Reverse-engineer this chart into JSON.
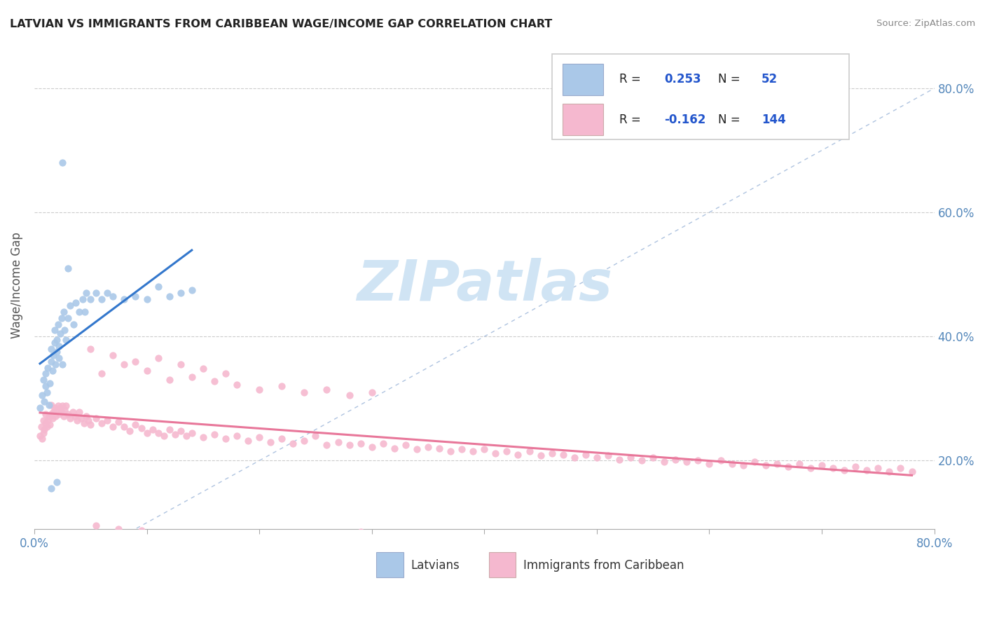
{
  "title": "LATVIAN VS IMMIGRANTS FROM CARIBBEAN WAGE/INCOME GAP CORRELATION CHART",
  "source": "Source: ZipAtlas.com",
  "ylabel": "Wage/Income Gap",
  "xlim": [
    0.0,
    0.8
  ],
  "ylim": [
    0.09,
    0.875
  ],
  "yticks": [
    0.2,
    0.4,
    0.6,
    0.8
  ],
  "ytick_labels": [
    "20.0%",
    "40.0%",
    "60.0%",
    "80.0%"
  ],
  "xtick_left_label": "0.0%",
  "xtick_right_label": "80.0%",
  "color_latvian_fill": "#aac8e8",
  "color_caribbean_fill": "#f5b8cf",
  "color_latvian_line": "#3377cc",
  "color_caribbean_line": "#e8779a",
  "color_diag": "#9ab4d8",
  "color_tick_label": "#5588bb",
  "watermark_text": "ZIPatlas",
  "watermark_color": "#d0e4f4",
  "legend_r1_label": "R = ",
  "legend_r1_val": "0.253",
  "legend_n1_label": "N = ",
  "legend_n1_val": "52",
  "legend_r2_label": "R = ",
  "legend_r2_val": "-0.162",
  "legend_n2_label": "N = ",
  "legend_n2_val": "144",
  "legend_color": "#2255cc",
  "bottom_legend_latvians": "Latvians",
  "bottom_legend_caribbean": "Immigrants from Caribbean",
  "lat_x": [
    0.005,
    0.007,
    0.008,
    0.009,
    0.01,
    0.01,
    0.011,
    0.012,
    0.013,
    0.014,
    0.015,
    0.015,
    0.016,
    0.017,
    0.018,
    0.018,
    0.019,
    0.02,
    0.02,
    0.021,
    0.022,
    0.022,
    0.023,
    0.024,
    0.025,
    0.026,
    0.027,
    0.028,
    0.03,
    0.032,
    0.035,
    0.037,
    0.04,
    0.043,
    0.046,
    0.05,
    0.055,
    0.06,
    0.065,
    0.07,
    0.08,
    0.09,
    0.1,
    0.11,
    0.12,
    0.13,
    0.14,
    0.025,
    0.03,
    0.045,
    0.015,
    0.02
  ],
  "lat_y": [
    0.285,
    0.305,
    0.33,
    0.295,
    0.32,
    0.34,
    0.31,
    0.35,
    0.29,
    0.325,
    0.36,
    0.38,
    0.345,
    0.37,
    0.39,
    0.41,
    0.355,
    0.375,
    0.395,
    0.42,
    0.365,
    0.385,
    0.405,
    0.43,
    0.355,
    0.44,
    0.41,
    0.395,
    0.43,
    0.45,
    0.42,
    0.455,
    0.44,
    0.46,
    0.47,
    0.46,
    0.47,
    0.46,
    0.47,
    0.465,
    0.46,
    0.465,
    0.46,
    0.48,
    0.465,
    0.47,
    0.475,
    0.68,
    0.51,
    0.44,
    0.155,
    0.165
  ],
  "car_x": [
    0.005,
    0.006,
    0.007,
    0.008,
    0.008,
    0.009,
    0.01,
    0.01,
    0.011,
    0.012,
    0.013,
    0.014,
    0.015,
    0.015,
    0.016,
    0.017,
    0.018,
    0.019,
    0.02,
    0.021,
    0.022,
    0.023,
    0.024,
    0.025,
    0.026,
    0.027,
    0.028,
    0.03,
    0.032,
    0.034,
    0.036,
    0.038,
    0.04,
    0.042,
    0.044,
    0.046,
    0.048,
    0.05,
    0.055,
    0.06,
    0.065,
    0.07,
    0.075,
    0.08,
    0.085,
    0.09,
    0.095,
    0.1,
    0.105,
    0.11,
    0.115,
    0.12,
    0.125,
    0.13,
    0.135,
    0.14,
    0.15,
    0.16,
    0.17,
    0.18,
    0.19,
    0.2,
    0.21,
    0.22,
    0.23,
    0.24,
    0.25,
    0.26,
    0.27,
    0.28,
    0.29,
    0.3,
    0.31,
    0.32,
    0.33,
    0.34,
    0.35,
    0.36,
    0.37,
    0.38,
    0.39,
    0.4,
    0.41,
    0.42,
    0.43,
    0.44,
    0.45,
    0.46,
    0.47,
    0.48,
    0.49,
    0.5,
    0.51,
    0.52,
    0.53,
    0.54,
    0.55,
    0.56,
    0.57,
    0.58,
    0.59,
    0.6,
    0.61,
    0.62,
    0.63,
    0.64,
    0.65,
    0.66,
    0.67,
    0.68,
    0.69,
    0.7,
    0.71,
    0.72,
    0.73,
    0.74,
    0.75,
    0.76,
    0.77,
    0.78,
    0.06,
    0.08,
    0.1,
    0.12,
    0.14,
    0.16,
    0.18,
    0.2,
    0.22,
    0.24,
    0.26,
    0.28,
    0.3,
    0.05,
    0.07,
    0.09,
    0.11,
    0.13,
    0.15,
    0.17,
    0.055,
    0.075,
    0.095,
    0.29
  ],
  "car_y": [
    0.24,
    0.255,
    0.235,
    0.245,
    0.265,
    0.25,
    0.26,
    0.275,
    0.255,
    0.265,
    0.27,
    0.258,
    0.275,
    0.29,
    0.268,
    0.278,
    0.285,
    0.272,
    0.282,
    0.288,
    0.275,
    0.285,
    0.278,
    0.288,
    0.272,
    0.282,
    0.288,
    0.275,
    0.268,
    0.278,
    0.272,
    0.265,
    0.278,
    0.268,
    0.26,
    0.272,
    0.265,
    0.258,
    0.268,
    0.26,
    0.265,
    0.255,
    0.262,
    0.255,
    0.248,
    0.258,
    0.252,
    0.245,
    0.25,
    0.245,
    0.24,
    0.25,
    0.242,
    0.248,
    0.24,
    0.245,
    0.238,
    0.242,
    0.235,
    0.24,
    0.232,
    0.238,
    0.23,
    0.235,
    0.228,
    0.232,
    0.24,
    0.225,
    0.23,
    0.225,
    0.228,
    0.222,
    0.228,
    0.22,
    0.225,
    0.218,
    0.222,
    0.22,
    0.215,
    0.218,
    0.215,
    0.218,
    0.212,
    0.215,
    0.21,
    0.215,
    0.208,
    0.212,
    0.21,
    0.205,
    0.21,
    0.205,
    0.208,
    0.202,
    0.205,
    0.2,
    0.205,
    0.198,
    0.202,
    0.198,
    0.2,
    0.195,
    0.2,
    0.195,
    0.192,
    0.198,
    0.192,
    0.195,
    0.19,
    0.195,
    0.188,
    0.192,
    0.188,
    0.185,
    0.19,
    0.185,
    0.188,
    0.182,
    0.188,
    0.182,
    0.34,
    0.355,
    0.345,
    0.33,
    0.335,
    0.328,
    0.322,
    0.315,
    0.32,
    0.31,
    0.315,
    0.305,
    0.31,
    0.38,
    0.37,
    0.36,
    0.365,
    0.355,
    0.348,
    0.34,
    0.095,
    0.09,
    0.088,
    0.085
  ]
}
